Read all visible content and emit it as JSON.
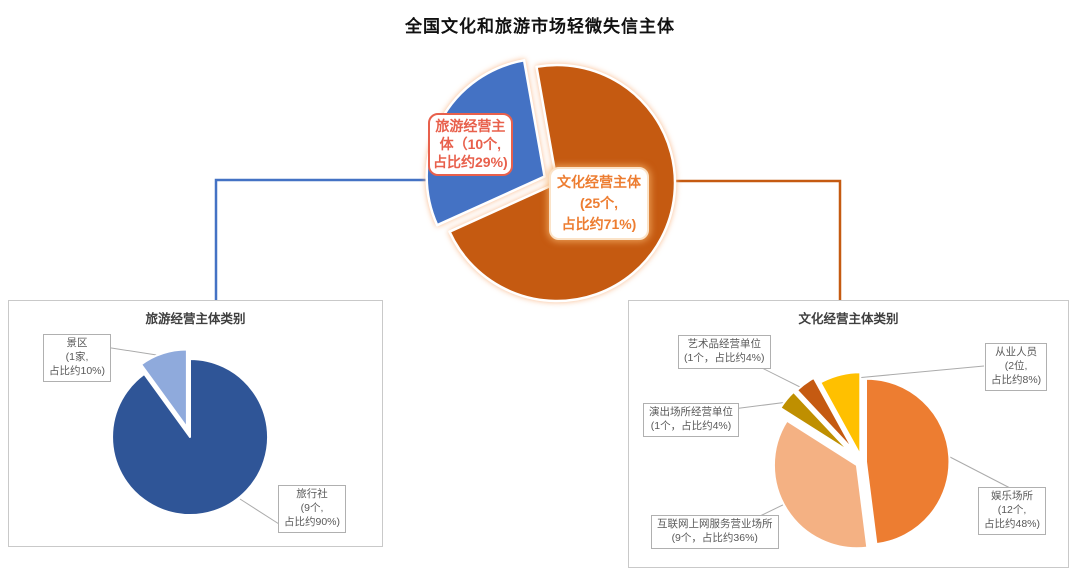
{
  "page": {
    "title": "全国文化和旅游市场轻微失信主体",
    "background": "#ffffff"
  },
  "colors": {
    "tourism_connector": "#4472C4",
    "culture_connector": "#C55A11",
    "callout_line": "#ababab",
    "panel_border": "#c9c9c9",
    "label_text": "#595959",
    "tourism_label_accent": "#e8604c",
    "culture_label_accent": "#ed7d31"
  },
  "chart_data": [
    {
      "id": "main",
      "type": "pie",
      "title": "全国文化和旅游市场轻微失信主体",
      "legend_position": "none",
      "slices": [
        {
          "label": "文化经营主体",
          "count": 25,
          "unit": "个",
          "pct": 71,
          "color": "#C55A11",
          "callout": "文化经营主体\n(25个,\n占比约71%)"
        },
        {
          "label": "旅游经营主体",
          "count": 10,
          "unit": "个",
          "pct": 29,
          "color": "#4472C4",
          "callout": "旅游经营主\n体（10个,\n占比约29%)"
        }
      ]
    },
    {
      "id": "tourism",
      "type": "pie",
      "title": "旅游经营主体类别",
      "legend_position": "none",
      "slices": [
        {
          "label": "旅行社",
          "count": 9,
          "unit": "个",
          "pct": 90,
          "color": "#2F5597",
          "callout": "旅行社\n(9个,\n占比约90%)"
        },
        {
          "label": "景区",
          "count": 1,
          "unit": "家",
          "pct": 10,
          "color": "#8FAADC",
          "callout": "景区\n(1家,\n占比约10%)"
        }
      ]
    },
    {
      "id": "culture",
      "type": "pie",
      "title": "文化经营主体类别",
      "legend_position": "none",
      "slices": [
        {
          "label": "娱乐场所",
          "count": 12,
          "unit": "个",
          "pct": 48,
          "color": "#ED7D31",
          "callout": "娱乐场所\n(12个,\n占比约48%)"
        },
        {
          "label": "互联网上网服务营业场所",
          "count": 9,
          "unit": "个",
          "pct": 36,
          "color": "#F4B183",
          "callout": "互联网上网服务营业场所\n(9个，占比约36%)"
        },
        {
          "label": "演出场所经营单位",
          "count": 1,
          "unit": "个",
          "pct": 4,
          "color": "#BF8F00",
          "callout": "演出场所经营单位\n(1个，占比约4%)"
        },
        {
          "label": "艺术品经营单位",
          "count": 1,
          "unit": "个",
          "pct": 4,
          "color": "#C55A11",
          "callout": "艺术品经营单位\n(1个，占比约4%)"
        },
        {
          "label": "从业人员",
          "count": 2,
          "unit": "位",
          "pct": 8,
          "color": "#FFC000",
          "callout": "从业人员\n(2位,\n占比约8%)"
        }
      ]
    }
  ]
}
